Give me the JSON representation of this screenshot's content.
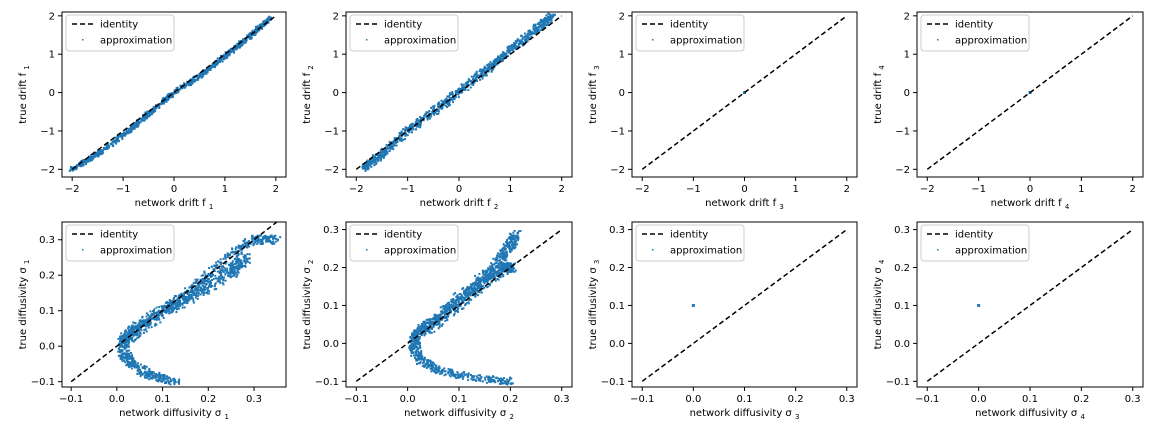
{
  "colors": {
    "scatter": "#1f77b4",
    "identity": "#000000",
    "axis": "#000000"
  },
  "legend": {
    "identity_label": "identity",
    "approx_label": "approximation",
    "placement": "top-left"
  },
  "chart_data": [
    {
      "type": "scatter",
      "xlabel": "network drift f",
      "xsub": "1",
      "ylabel": "true drift f",
      "ysub": "1",
      "xlim": [
        -2.2,
        2.2
      ],
      "ylim": [
        -2.2,
        2.1
      ],
      "xticks": [
        -2,
        -1,
        0,
        1,
        2
      ],
      "yticks": [
        -2,
        -1,
        0,
        1,
        2
      ],
      "xtick_labels": [
        "−2",
        "−1",
        "0",
        "1",
        "2"
      ],
      "ytick_labels": [
        "−2",
        "−1",
        "0",
        "1",
        "2"
      ],
      "identity": [
        [
          -2,
          -2
        ],
        [
          2,
          2
        ]
      ],
      "approx_path": [
        [
          -2.0,
          -2.0
        ],
        [
          -1.5,
          -1.6
        ],
        [
          -1.0,
          -1.12
        ],
        [
          -0.5,
          -0.55
        ],
        [
          0,
          0.0
        ],
        [
          0.5,
          0.42
        ],
        [
          1.0,
          0.95
        ],
        [
          1.5,
          1.48
        ],
        [
          1.9,
          1.95
        ]
      ],
      "band": 0.05
    },
    {
      "type": "scatter",
      "xlabel": "network drift f",
      "xsub": "2",
      "ylabel": "true drift f",
      "ysub": "2",
      "xlim": [
        -2.2,
        2.2
      ],
      "ylim": [
        -2.2,
        2.1
      ],
      "xticks": [
        -2,
        -1,
        0,
        1,
        2
      ],
      "yticks": [
        -2,
        -1,
        0,
        1,
        2
      ],
      "xtick_labels": [
        "−2",
        "−1",
        "0",
        "1",
        "2"
      ],
      "ytick_labels": [
        "−2",
        "−1",
        "0",
        "1",
        "2"
      ],
      "identity": [
        [
          -2,
          -2
        ],
        [
          2,
          2
        ]
      ],
      "approx_path": [
        [
          -1.85,
          -1.97
        ],
        [
          -1.5,
          -1.6
        ],
        [
          -1.0,
          -1.0
        ],
        [
          -0.5,
          -0.5
        ],
        [
          0,
          0.02
        ],
        [
          0.5,
          0.55
        ],
        [
          1.0,
          1.1
        ],
        [
          1.5,
          1.65
        ],
        [
          1.8,
          1.98
        ]
      ],
      "band": 0.08
    },
    {
      "type": "scatter",
      "xlabel": "network drift f",
      "xsub": "3",
      "ylabel": "true drift f",
      "ysub": "3",
      "xlim": [
        -2.2,
        2.2
      ],
      "ylim": [
        -2.2,
        2.1
      ],
      "xticks": [
        -2,
        -1,
        0,
        1,
        2
      ],
      "yticks": [
        -2,
        -1,
        0,
        1,
        2
      ],
      "xtick_labels": [
        "−2",
        "−1",
        "0",
        "1",
        "2"
      ],
      "ytick_labels": [
        "−2",
        "−1",
        "0",
        "1",
        "2"
      ],
      "identity": [
        [
          -2,
          -2
        ],
        [
          2,
          2
        ]
      ],
      "approx_points": [
        [
          0,
          0
        ]
      ]
    },
    {
      "type": "scatter",
      "xlabel": "network drift f",
      "xsub": "4",
      "ylabel": "true drift f",
      "ysub": "4",
      "xlim": [
        -2.2,
        2.2
      ],
      "ylim": [
        -2.2,
        2.1
      ],
      "xticks": [
        -2,
        -1,
        0,
        1,
        2
      ],
      "yticks": [
        -2,
        -1,
        0,
        1,
        2
      ],
      "xtick_labels": [
        "−2",
        "−1",
        "0",
        "1",
        "2"
      ],
      "ytick_labels": [
        "−2",
        "−1",
        "0",
        "1",
        "2"
      ],
      "identity": [
        [
          -2,
          -2
        ],
        [
          2,
          2
        ]
      ],
      "approx_points": [
        [
          0,
          0
        ]
      ]
    },
    {
      "type": "scatter",
      "xlabel": "network diffusivity σ",
      "xsub": "1",
      "ylabel": "true diffusivity σ",
      "ysub": "1",
      "xlim": [
        -0.12,
        0.37
      ],
      "ylim": [
        -0.115,
        0.35
      ],
      "xticks": [
        -0.1,
        0.0,
        0.1,
        0.2,
        0.3
      ],
      "yticks": [
        -0.1,
        0.0,
        0.1,
        0.2,
        0.3
      ],
      "xtick_labels": [
        "−0.1",
        "0.0",
        "0.1",
        "0.2",
        "0.3"
      ],
      "ytick_labels": [
        "−0.1",
        "0.0",
        "0.1",
        "0.2",
        "0.3"
      ],
      "identity": [
        [
          -0.1,
          -0.1
        ],
        [
          0.35,
          0.35
        ]
      ],
      "approx_path": [
        [
          0.13,
          -0.1
        ],
        [
          0.08,
          -0.085
        ],
        [
          0.04,
          -0.06
        ],
        [
          0.015,
          -0.02
        ],
        [
          0.015,
          0.02
        ],
        [
          0.04,
          0.05
        ],
        [
          0.1,
          0.1
        ],
        [
          0.15,
          0.14
        ],
        [
          0.2,
          0.2
        ],
        [
          0.25,
          0.26
        ],
        [
          0.3,
          0.3
        ],
        [
          0.35,
          0.3
        ]
      ],
      "band": 0.012,
      "band_path": [
        [
          0.02,
          0.02
        ],
        [
          0.08,
          0.08
        ],
        [
          0.15,
          0.13
        ],
        [
          0.2,
          0.17
        ],
        [
          0.25,
          0.21
        ],
        [
          0.28,
          0.25
        ]
      ],
      "band2": 0.015
    },
    {
      "type": "scatter",
      "xlabel": "network diffusivity σ",
      "xsub": "2",
      "ylabel": "true diffusivity σ",
      "ysub": "2",
      "xlim": [
        -0.12,
        0.32
      ],
      "ylim": [
        -0.115,
        0.32
      ],
      "xticks": [
        -0.1,
        0.0,
        0.1,
        0.2,
        0.3
      ],
      "yticks": [
        -0.1,
        0.0,
        0.1,
        0.2,
        0.3
      ],
      "xtick_labels": [
        "−0.1",
        "0.0",
        "0.1",
        "0.2",
        "0.3"
      ],
      "ytick_labels": [
        "−0.1",
        "0.0",
        "0.1",
        "0.2",
        "0.3"
      ],
      "identity": [
        [
          -0.1,
          -0.1
        ],
        [
          0.3,
          0.3
        ]
      ],
      "approx_path": [
        [
          0.2,
          -0.1
        ],
        [
          0.12,
          -0.09
        ],
        [
          0.06,
          -0.07
        ],
        [
          0.02,
          -0.04
        ],
        [
          0.012,
          0.0
        ],
        [
          0.02,
          0.03
        ],
        [
          0.06,
          0.07
        ],
        [
          0.1,
          0.12
        ],
        [
          0.15,
          0.18
        ],
        [
          0.18,
          0.22
        ],
        [
          0.2,
          0.26
        ],
        [
          0.21,
          0.29
        ]
      ],
      "band": 0.01,
      "band_path": [
        [
          0.03,
          0.03
        ],
        [
          0.08,
          0.08
        ],
        [
          0.12,
          0.13
        ],
        [
          0.16,
          0.17
        ],
        [
          0.19,
          0.2
        ],
        [
          0.2,
          0.2
        ]
      ],
      "band2": 0.012
    },
    {
      "type": "scatter",
      "xlabel": "network diffusivity σ",
      "xsub": "3",
      "ylabel": "true diffusivity σ",
      "ysub": "3",
      "xlim": [
        -0.12,
        0.32
      ],
      "ylim": [
        -0.115,
        0.32
      ],
      "xticks": [
        -0.1,
        0.0,
        0.1,
        0.2,
        0.3
      ],
      "yticks": [
        -0.1,
        0.0,
        0.1,
        0.2,
        0.3
      ],
      "xtick_labels": [
        "−0.1",
        "0.0",
        "0.1",
        "0.2",
        "0.3"
      ],
      "ytick_labels": [
        "−0.1",
        "0.0",
        "0.1",
        "0.2",
        "0.3"
      ],
      "identity": [
        [
          -0.1,
          -0.1
        ],
        [
          0.3,
          0.3
        ]
      ],
      "approx_points": [
        [
          0.0,
          0.1
        ]
      ]
    },
    {
      "type": "scatter",
      "xlabel": "network diffusivity σ",
      "xsub": "4",
      "ylabel": "true diffusivity σ",
      "ysub": "4",
      "xlim": [
        -0.12,
        0.32
      ],
      "ylim": [
        -0.115,
        0.32
      ],
      "xticks": [
        -0.1,
        0.0,
        0.1,
        0.2,
        0.3
      ],
      "yticks": [
        -0.1,
        0.0,
        0.1,
        0.2,
        0.3
      ],
      "xtick_labels": [
        "−0.1",
        "0.0",
        "0.1",
        "0.2",
        "0.3"
      ],
      "ytick_labels": [
        "−0.1",
        "0.0",
        "0.1",
        "0.2",
        "0.3"
      ],
      "identity": [
        [
          -0.1,
          -0.1
        ],
        [
          0.3,
          0.3
        ]
      ],
      "approx_points": [
        [
          0.0,
          0.1
        ]
      ]
    }
  ]
}
